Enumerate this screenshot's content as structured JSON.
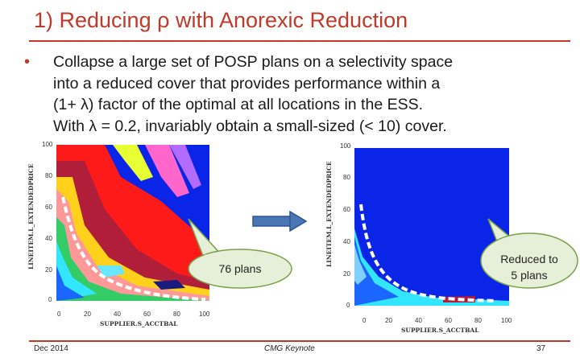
{
  "slide": {
    "title": "1) Reducing ρ with Anorexic Reduction",
    "bullet_lines": [
      "Collapse a large set of POSP plans on a selectivity space",
      "into a reduced cover that provides performance within a",
      "(1+ λ) factor of the optimal at all locations in the ESS.",
      "With λ = 0.2, invariably obtain a small-sized (< 10) cover."
    ]
  },
  "left_plot": {
    "ylabel": "LINEITEM.L_EXTENDEDPRICE",
    "xlabel": "SUPPLIER.S_ACCTBAL",
    "y_ticks": [
      "100",
      "80",
      "60",
      "40",
      "20",
      "0"
    ],
    "x_ticks": [
      "0",
      "20",
      "40",
      "60",
      "80",
      "100"
    ]
  },
  "right_plot": {
    "ylabel": "LINEITEM.L_EXTENDEDPRICE",
    "xlabel": "SUPPLIER.S_ACCTBAL",
    "y_ticks": [
      "100",
      "80",
      "60",
      "40",
      "20",
      "0"
    ],
    "x_ticks": [
      "0",
      "20",
      "40",
      "60",
      "80",
      "100"
    ]
  },
  "callouts": {
    "left": "76 plans",
    "right_line1": "Reduced to",
    "right_line2": "5 plans"
  },
  "footer": {
    "date": "Dec 2014",
    "event": "CMG Keynote",
    "page": "37"
  },
  "colors": {
    "accent": "#c0392b",
    "plot_blue": "#0a24e8",
    "arrow": "#4a77b4"
  }
}
